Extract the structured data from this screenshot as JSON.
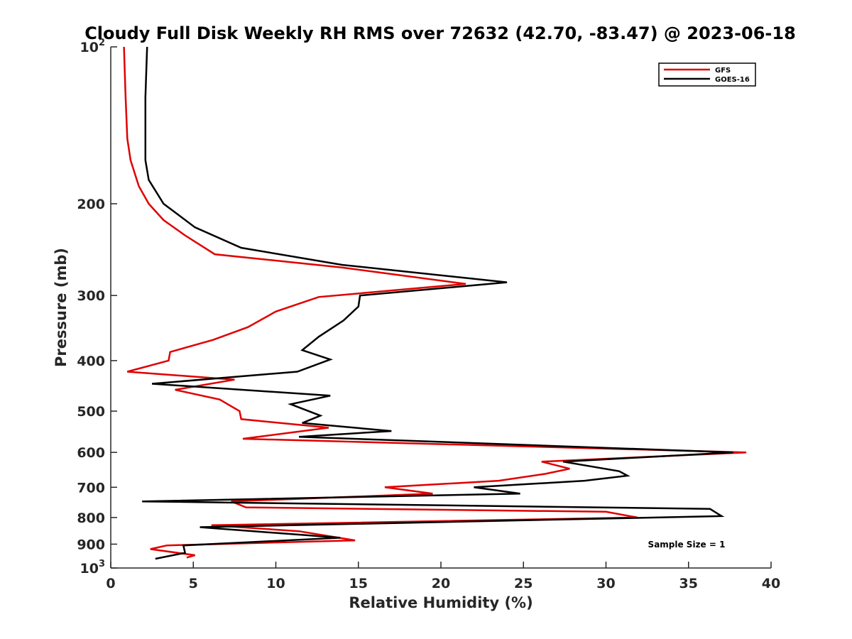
{
  "chart_data": {
    "type": "line",
    "title": "Cloudy Full Disk Weekly RH RMS over 72632 (42.70, -83.47) @ 2023-06-18",
    "xlabel": "Relative Humidity (%)",
    "ylabel": "Pressure (mb)",
    "xlim": [
      0,
      40
    ],
    "ylim": [
      100,
      1000
    ],
    "y_scale": "log",
    "y_reversed": true,
    "x_ticks": [
      0,
      5,
      10,
      15,
      20,
      25,
      30,
      35,
      40
    ],
    "x_tick_labels": [
      "0",
      "5",
      "10",
      "15",
      "20",
      "25",
      "30",
      "35",
      "40"
    ],
    "y_ticks": [
      {
        "value": 100,
        "base": "10",
        "exp": "2"
      },
      {
        "value": 200,
        "label": "200"
      },
      {
        "value": 300,
        "label": "300"
      },
      {
        "value": 400,
        "label": "400"
      },
      {
        "value": 500,
        "label": "500"
      },
      {
        "value": 600,
        "label": "600"
      },
      {
        "value": 700,
        "label": "700"
      },
      {
        "value": 800,
        "label": "800"
      },
      {
        "value": 900,
        "label": "900"
      },
      {
        "value": 1000,
        "base": "10",
        "exp": "3"
      }
    ],
    "legend_position": "top-right",
    "annotation": "Sample Size = 1",
    "series": [
      {
        "name": "GFS",
        "color": "#e00000",
        "points": [
          [
            0.8,
            100
          ],
          [
            0.9,
            125
          ],
          [
            1.0,
            150
          ],
          [
            1.2,
            165
          ],
          [
            1.7,
            185
          ],
          [
            2.3,
            200
          ],
          [
            3.2,
            215
          ],
          [
            4.5,
            230
          ],
          [
            6.3,
            250
          ],
          [
            14.0,
            265
          ],
          [
            21.5,
            285
          ],
          [
            12.6,
            302
          ],
          [
            10.0,
            322
          ],
          [
            8.3,
            345
          ],
          [
            6.2,
            365
          ],
          [
            3.6,
            385
          ],
          [
            3.5,
            400
          ],
          [
            1.0,
            420
          ],
          [
            7.5,
            435
          ],
          [
            3.9,
            455
          ],
          [
            6.6,
            475
          ],
          [
            7.8,
            500
          ],
          [
            7.9,
            518
          ],
          [
            13.2,
            538
          ],
          [
            8.0,
            565
          ],
          [
            38.5,
            600
          ],
          [
            26.1,
            625
          ],
          [
            27.8,
            645
          ],
          [
            26.3,
            660
          ],
          [
            23.5,
            680
          ],
          [
            16.6,
            700
          ],
          [
            19.5,
            720
          ],
          [
            7.3,
            745
          ],
          [
            8.2,
            765
          ],
          [
            30.0,
            780
          ],
          [
            31.9,
            800
          ],
          [
            6.1,
            828
          ],
          [
            11.4,
            850
          ],
          [
            14.8,
            885
          ],
          [
            3.4,
            905
          ],
          [
            2.4,
            920
          ],
          [
            5.1,
            945
          ],
          [
            4.6,
            955
          ]
        ]
      },
      {
        "name": "GOES-16",
        "color": "#000000",
        "points": [
          [
            2.2,
            100
          ],
          [
            2.1,
            125
          ],
          [
            2.1,
            150
          ],
          [
            2.1,
            165
          ],
          [
            2.3,
            180
          ],
          [
            3.2,
            200
          ],
          [
            5.1,
            222
          ],
          [
            7.9,
            243
          ],
          [
            14.0,
            262
          ],
          [
            24.0,
            283
          ],
          [
            15.1,
            300
          ],
          [
            15.0,
            315
          ],
          [
            14.1,
            335
          ],
          [
            12.6,
            360
          ],
          [
            11.6,
            382
          ],
          [
            13.3,
            398
          ],
          [
            11.3,
            420
          ],
          [
            2.5,
            443
          ],
          [
            13.3,
            467
          ],
          [
            10.9,
            485
          ],
          [
            12.7,
            510
          ],
          [
            11.6,
            527
          ],
          [
            17.0,
            546
          ],
          [
            11.4,
            560
          ],
          [
            37.7,
            600
          ],
          [
            27.4,
            625
          ],
          [
            30.8,
            652
          ],
          [
            31.3,
            665
          ],
          [
            28.7,
            680
          ],
          [
            22.0,
            700
          ],
          [
            24.8,
            720
          ],
          [
            1.9,
            745
          ],
          [
            36.3,
            770
          ],
          [
            37.0,
            795
          ],
          [
            5.4,
            835
          ],
          [
            13.9,
            875
          ],
          [
            4.4,
            905
          ],
          [
            4.5,
            935
          ],
          [
            2.7,
            960
          ]
        ]
      }
    ]
  }
}
